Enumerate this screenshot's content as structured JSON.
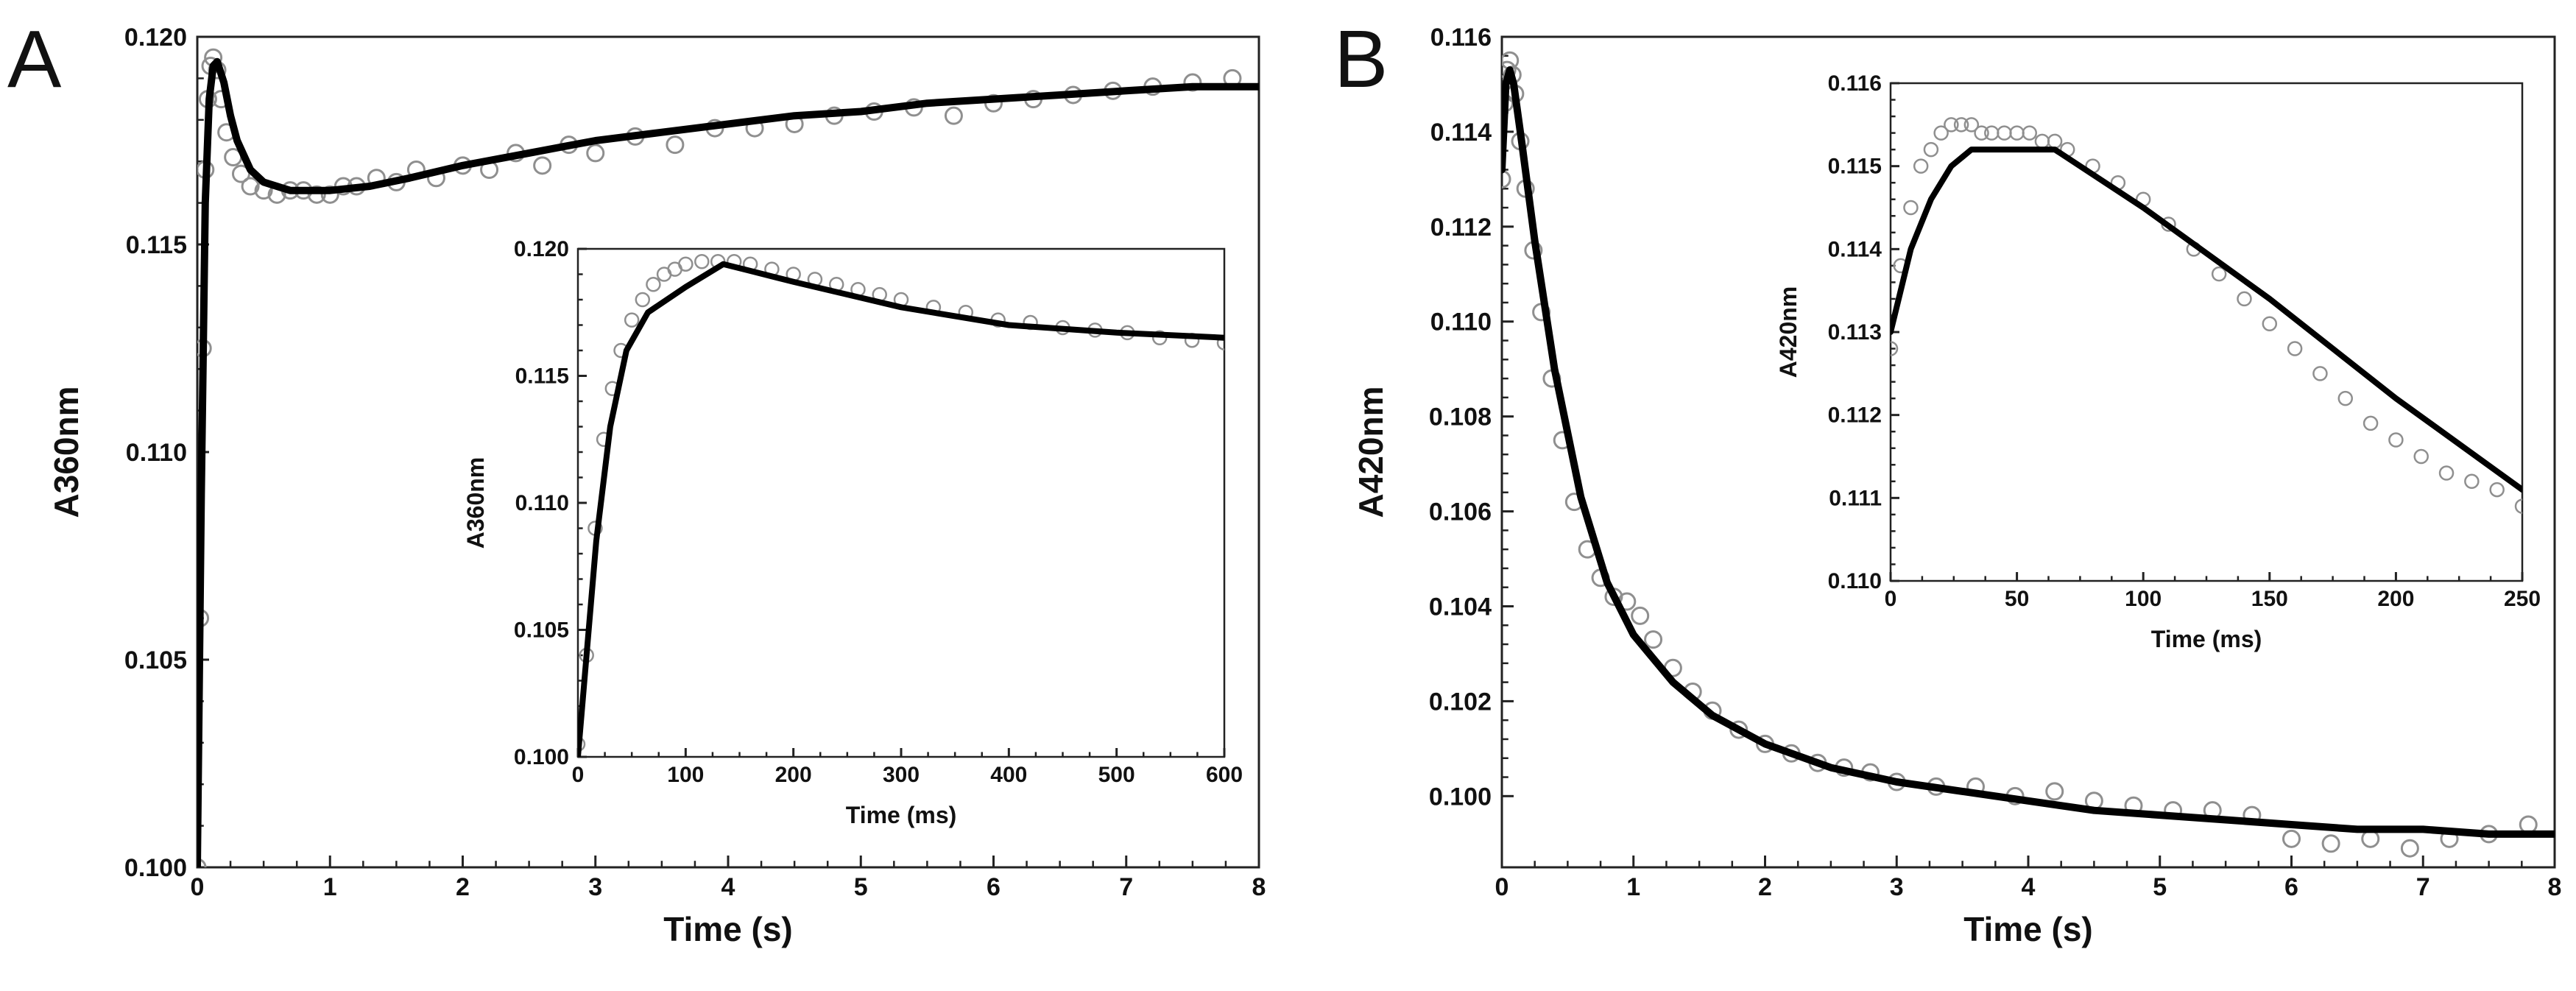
{
  "colors": {
    "fit_line": "#000000",
    "markers": "#8f8f8f",
    "axes": "#222222"
  },
  "chart_data": [
    {
      "type": "scatter",
      "panel": "A",
      "title": "",
      "xlabel": "Time (s)",
      "ylabel": "A360nm",
      "xlim": [
        0,
        8
      ],
      "ylim": [
        0.1,
        0.12
      ],
      "xticks": [
        {
          "v": 0,
          "t": "0"
        },
        {
          "v": 1,
          "t": "1"
        },
        {
          "v": 2,
          "t": "2"
        },
        {
          "v": 3,
          "t": "3"
        },
        {
          "v": 4,
          "t": "4"
        },
        {
          "v": 5,
          "t": "5"
        },
        {
          "v": 6,
          "t": "6"
        },
        {
          "v": 7,
          "t": "7"
        },
        {
          "v": 8,
          "t": "8"
        }
      ],
      "yticks": [
        {
          "v": 0.1,
          "t": "0.100"
        },
        {
          "v": 0.105,
          "t": "0.105"
        },
        {
          "v": 0.11,
          "t": "0.110"
        },
        {
          "v": 0.115,
          "t": "0.115"
        },
        {
          "v": 0.12,
          "t": "0.120"
        }
      ],
      "series": [
        {
          "name": "data",
          "style": "markers",
          "x": [
            0,
            0.02,
            0.04,
            0.06,
            0.08,
            0.1,
            0.12,
            0.15,
            0.18,
            0.22,
            0.27,
            0.33,
            0.4,
            0.5,
            0.6,
            0.7,
            0.8,
            0.9,
            1.0,
            1.1,
            1.2,
            1.35,
            1.5,
            1.65,
            1.8,
            2.0,
            2.2,
            2.4,
            2.6,
            2.8,
            3.0,
            3.3,
            3.6,
            3.9,
            4.2,
            4.5,
            4.8,
            5.1,
            5.4,
            5.7,
            6.0,
            6.3,
            6.6,
            6.9,
            7.2,
            7.5,
            7.8
          ],
          "y": [
            0.1,
            0.106,
            0.1125,
            0.1168,
            0.1185,
            0.1193,
            0.1195,
            0.1192,
            0.1185,
            0.1177,
            0.1171,
            0.1167,
            0.1164,
            0.1163,
            0.1162,
            0.1163,
            0.1163,
            0.1162,
            0.1162,
            0.1164,
            0.1164,
            0.1166,
            0.1165,
            0.1168,
            0.1166,
            0.1169,
            0.1168,
            0.1172,
            0.1169,
            0.1174,
            0.1172,
            0.1176,
            0.1174,
            0.1178,
            0.1178,
            0.1179,
            0.1181,
            0.1182,
            0.1183,
            0.1181,
            0.1184,
            0.1185,
            0.1186,
            0.1187,
            0.1188,
            0.1189,
            0.119
          ]
        },
        {
          "name": "fit",
          "style": "line",
          "x": [
            0,
            0.03,
            0.06,
            0.09,
            0.12,
            0.15,
            0.2,
            0.25,
            0.3,
            0.4,
            0.5,
            0.7,
            1.0,
            1.3,
            1.6,
            2.0,
            2.5,
            3.0,
            3.5,
            4.0,
            4.5,
            5.0,
            5.5,
            6.0,
            6.5,
            7.0,
            7.5,
            8.0
          ],
          "y": [
            0.1,
            0.109,
            0.116,
            0.1185,
            0.1193,
            0.1194,
            0.1189,
            0.1181,
            0.1175,
            0.1168,
            0.1165,
            0.1163,
            0.1163,
            0.1164,
            0.1166,
            0.1169,
            0.1172,
            0.1175,
            0.1177,
            0.1179,
            0.1181,
            0.1182,
            0.1184,
            0.1185,
            0.1186,
            0.1187,
            0.1188,
            0.1188
          ]
        }
      ],
      "inset": {
        "xlabel": "Time (ms)",
        "ylabel": "A360nm",
        "xlim": [
          0,
          600
        ],
        "ylim": [
          0.1,
          0.12
        ],
        "xticks": [
          {
            "v": 0,
            "t": "0"
          },
          {
            "v": 100,
            "t": "100"
          },
          {
            "v": 200,
            "t": "200"
          },
          {
            "v": 300,
            "t": "300"
          },
          {
            "v": 400,
            "t": "400"
          },
          {
            "v": 500,
            "t": "500"
          },
          {
            "v": 600,
            "t": "600"
          }
        ],
        "yticks": [
          {
            "v": 0.1,
            "t": "0.100"
          },
          {
            "v": 0.105,
            "t": "0.105"
          },
          {
            "v": 0.11,
            "t": "0.110"
          },
          {
            "v": 0.115,
            "t": "0.115"
          },
          {
            "v": 0.12,
            "t": "0.120"
          }
        ],
        "series": [
          {
            "name": "data",
            "style": "markers",
            "x": [
              0,
              8,
              16,
              24,
              32,
              40,
              50,
              60,
              70,
              80,
              90,
              100,
              115,
              130,
              145,
              160,
              180,
              200,
              220,
              240,
              260,
              280,
              300,
              330,
              360,
              390,
              420,
              450,
              480,
              510,
              540,
              570,
              600
            ],
            "y": [
              0.1005,
              0.104,
              0.109,
              0.1125,
              0.1145,
              0.116,
              0.1172,
              0.118,
              0.1186,
              0.119,
              0.1192,
              0.1194,
              0.1195,
              0.1195,
              0.1195,
              0.1194,
              0.1192,
              0.119,
              0.1188,
              0.1186,
              0.1184,
              0.1182,
              0.118,
              0.1177,
              0.1175,
              0.1172,
              0.1171,
              0.1169,
              0.1168,
              0.1167,
              0.1165,
              0.1164,
              0.1163
            ]
          },
          {
            "name": "fit",
            "style": "line",
            "x": [
              0,
              8,
              17,
              30,
              45,
              65,
              100,
              135,
              200,
              300,
              400,
              500,
              600
            ],
            "y": [
              0.1,
              0.104,
              0.1085,
              0.113,
              0.116,
              0.1175,
              0.1185,
              0.1194,
              0.1187,
              0.1177,
              0.117,
              0.1167,
              0.1165
            ]
          }
        ]
      }
    },
    {
      "type": "scatter",
      "panel": "B",
      "title": "",
      "xlabel": "Time (s)",
      "ylabel": "A420nm",
      "xlim": [
        0,
        8
      ],
      "ylim": [
        0.0985,
        0.116
      ],
      "xticks": [
        {
          "v": 0,
          "t": "0"
        },
        {
          "v": 1,
          "t": "1"
        },
        {
          "v": 2,
          "t": "2"
        },
        {
          "v": 3,
          "t": "3"
        },
        {
          "v": 4,
          "t": "4"
        },
        {
          "v": 5,
          "t": "5"
        },
        {
          "v": 6,
          "t": "6"
        },
        {
          "v": 7,
          "t": "7"
        },
        {
          "v": 8,
          "t": "8"
        }
      ],
      "yticks": [
        {
          "v": 0.1,
          "t": "0.100"
        },
        {
          "v": 0.102,
          "t": "0.102"
        },
        {
          "v": 0.104,
          "t": "0.104"
        },
        {
          "v": 0.106,
          "t": "0.106"
        },
        {
          "v": 0.108,
          "t": "0.108"
        },
        {
          "v": 0.11,
          "t": "0.110"
        },
        {
          "v": 0.112,
          "t": "0.112"
        },
        {
          "v": 0.114,
          "t": "0.114"
        },
        {
          "v": 0.116,
          "t": "0.116"
        }
      ],
      "series": [
        {
          "name": "data",
          "style": "markers",
          "x": [
            0,
            0.02,
            0.04,
            0.06,
            0.08,
            0.1,
            0.14,
            0.18,
            0.24,
            0.3,
            0.38,
            0.46,
            0.55,
            0.65,
            0.75,
            0.85,
            0.95,
            1.05,
            1.15,
            1.3,
            1.45,
            1.6,
            1.8,
            2.0,
            2.2,
            2.4,
            2.6,
            2.8,
            3.0,
            3.3,
            3.6,
            3.9,
            4.2,
            4.5,
            4.8,
            5.1,
            5.4,
            5.7,
            6.0,
            6.3,
            6.6,
            6.9,
            7.2,
            7.5,
            7.8
          ],
          "y": [
            0.113,
            0.1146,
            0.1153,
            0.1155,
            0.1152,
            0.1148,
            0.1138,
            0.1128,
            0.1115,
            0.1102,
            0.1088,
            0.1075,
            0.1062,
            0.1052,
            0.1046,
            0.1042,
            0.1041,
            0.1038,
            0.1033,
            0.1027,
            0.1022,
            0.1018,
            0.1014,
            0.1011,
            0.1009,
            0.1007,
            0.1006,
            0.1005,
            0.1003,
            0.1002,
            0.1002,
            0.1,
            0.1001,
            0.0999,
            0.0998,
            0.0997,
            0.0997,
            0.0996,
            0.0991,
            0.099,
            0.0991,
            0.0989,
            0.0991,
            0.0992,
            0.0994
          ]
        },
        {
          "name": "fit",
          "style": "line",
          "x": [
            0,
            0.03,
            0.06,
            0.09,
            0.15,
            0.25,
            0.4,
            0.6,
            0.8,
            1.0,
            1.3,
            1.6,
            2.0,
            2.5,
            3.0,
            3.5,
            4.0,
            4.5,
            5.0,
            5.5,
            6.0,
            6.5,
            7.0,
            7.5,
            8.0
          ],
          "y": [
            0.1132,
            0.115,
            0.1153,
            0.115,
            0.1138,
            0.1117,
            0.109,
            0.1063,
            0.1045,
            0.1034,
            0.1024,
            0.1017,
            0.1011,
            0.1006,
            0.1003,
            0.1001,
            0.0999,
            0.0997,
            0.0996,
            0.0995,
            0.0994,
            0.0993,
            0.0993,
            0.0992,
            0.0992
          ]
        }
      ],
      "inset": {
        "xlabel": "Time (ms)",
        "ylabel": "A420nm",
        "xlim": [
          0,
          250
        ],
        "ylim": [
          0.11,
          0.116
        ],
        "xticks": [
          {
            "v": 0,
            "t": "0"
          },
          {
            "v": 50,
            "t": "50"
          },
          {
            "v": 100,
            "t": "100"
          },
          {
            "v": 150,
            "t": "150"
          },
          {
            "v": 200,
            "t": "200"
          },
          {
            "v": 250,
            "t": "250"
          }
        ],
        "yticks": [
          {
            "v": 0.11,
            "t": "0.110"
          },
          {
            "v": 0.111,
            "t": "0.111"
          },
          {
            "v": 0.112,
            "t": "0.112"
          },
          {
            "v": 0.113,
            "t": "0.113"
          },
          {
            "v": 0.114,
            "t": "0.114"
          },
          {
            "v": 0.115,
            "t": "0.115"
          },
          {
            "v": 0.116,
            "t": "0.116"
          }
        ],
        "series": [
          {
            "name": "data",
            "style": "markers",
            "x": [
              0,
              4,
              8,
              12,
              16,
              20,
              24,
              28,
              32,
              36,
              40,
              45,
              50,
              55,
              60,
              65,
              70,
              80,
              90,
              100,
              110,
              120,
              130,
              140,
              150,
              160,
              170,
              180,
              190,
              200,
              210,
              220,
              230,
              240,
              250
            ],
            "y": [
              0.1128,
              0.1138,
              0.1145,
              0.115,
              0.1152,
              0.1154,
              0.1155,
              0.1155,
              0.1155,
              0.1154,
              0.1154,
              0.1154,
              0.1154,
              0.1154,
              0.1153,
              0.1153,
              0.1152,
              0.115,
              0.1148,
              0.1146,
              0.1143,
              0.114,
              0.1137,
              0.1134,
              0.1131,
              0.1128,
              0.1125,
              0.1122,
              0.1119,
              0.1117,
              0.1115,
              0.1113,
              0.1112,
              0.1111,
              0.1109
            ]
          },
          {
            "name": "fit",
            "style": "line",
            "x": [
              0,
              8,
              16,
              24,
              32,
              48,
              65,
              100,
              150,
              200,
              250
            ],
            "y": [
              0.113,
              0.114,
              0.1146,
              0.115,
              0.1152,
              0.1152,
              0.1152,
              0.1145,
              0.1134,
              0.1122,
              0.1111
            ]
          }
        ]
      }
    }
  ]
}
